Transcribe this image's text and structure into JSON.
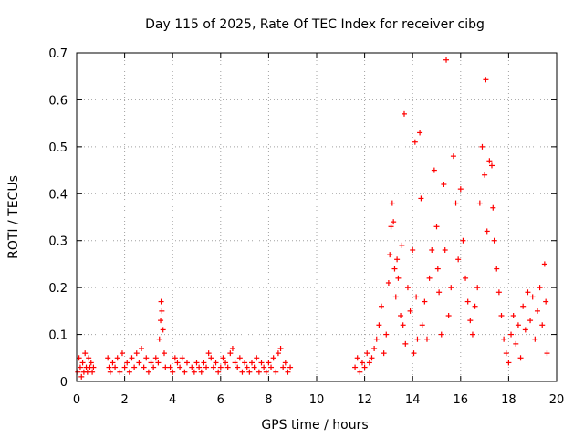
{
  "chart_data": {
    "type": "scatter",
    "title": "Day 115 of 2025, Rate Of TEC Index for receiver cibg",
    "xlabel": "GPS time / hours",
    "ylabel": "ROTI / TECUs",
    "xlim": [
      0,
      20
    ],
    "ylim": [
      0,
      0.7
    ],
    "grid": true,
    "marker": "+",
    "color": "#ff0000",
    "x_ticks": [
      "0",
      "2",
      "4",
      "6",
      "8",
      "10",
      "12",
      "14",
      "16",
      "18",
      "20"
    ],
    "y_ticks": [
      "0",
      "0.1",
      "0.2",
      "0.3",
      "0.4",
      "0.5",
      "0.6",
      "0.7"
    ],
    "series": [
      {
        "name": "ROTI",
        "points": [
          [
            0.05,
            0.02
          ],
          [
            0.1,
            0.05
          ],
          [
            0.15,
            0.03
          ],
          [
            0.2,
            0.01
          ],
          [
            0.25,
            0.04
          ],
          [
            0.3,
            0.02
          ],
          [
            0.35,
            0.06
          ],
          [
            0.4,
            0.03
          ],
          [
            0.45,
            0.02
          ],
          [
            0.5,
            0.05
          ],
          [
            0.55,
            0.03
          ],
          [
            0.6,
            0.04
          ],
          [
            0.65,
            0.02
          ],
          [
            0.7,
            0.03
          ],
          [
            1.3,
            0.05
          ],
          [
            1.35,
            0.03
          ],
          [
            1.4,
            0.02
          ],
          [
            1.5,
            0.04
          ],
          [
            1.6,
            0.03
          ],
          [
            1.7,
            0.05
          ],
          [
            1.8,
            0.02
          ],
          [
            1.9,
            0.06
          ],
          [
            2.0,
            0.03
          ],
          [
            2.1,
            0.04
          ],
          [
            2.2,
            0.02
          ],
          [
            2.3,
            0.05
          ],
          [
            2.4,
            0.03
          ],
          [
            2.5,
            0.06
          ],
          [
            2.6,
            0.04
          ],
          [
            2.7,
            0.07
          ],
          [
            2.8,
            0.03
          ],
          [
            2.9,
            0.05
          ],
          [
            3.0,
            0.02
          ],
          [
            3.1,
            0.04
          ],
          [
            3.2,
            0.03
          ],
          [
            3.3,
            0.05
          ],
          [
            3.4,
            0.04
          ],
          [
            3.45,
            0.09
          ],
          [
            3.5,
            0.13
          ],
          [
            3.52,
            0.17
          ],
          [
            3.55,
            0.15
          ],
          [
            3.6,
            0.11
          ],
          [
            3.65,
            0.06
          ],
          [
            3.7,
            0.03
          ],
          [
            3.9,
            0.03
          ],
          [
            4.0,
            0.02
          ],
          [
            4.1,
            0.05
          ],
          [
            4.2,
            0.04
          ],
          [
            4.3,
            0.03
          ],
          [
            4.4,
            0.05
          ],
          [
            4.5,
            0.02
          ],
          [
            4.6,
            0.04
          ],
          [
            4.8,
            0.03
          ],
          [
            4.9,
            0.02
          ],
          [
            5.0,
            0.04
          ],
          [
            5.1,
            0.03
          ],
          [
            5.2,
            0.02
          ],
          [
            5.3,
            0.04
          ],
          [
            5.4,
            0.03
          ],
          [
            5.5,
            0.06
          ],
          [
            5.6,
            0.05
          ],
          [
            5.7,
            0.03
          ],
          [
            5.8,
            0.04
          ],
          [
            5.9,
            0.02
          ],
          [
            6.0,
            0.03
          ],
          [
            6.1,
            0.05
          ],
          [
            6.2,
            0.04
          ],
          [
            6.3,
            0.03
          ],
          [
            6.4,
            0.06
          ],
          [
            6.5,
            0.07
          ],
          [
            6.6,
            0.04
          ],
          [
            6.7,
            0.03
          ],
          [
            6.8,
            0.05
          ],
          [
            6.9,
            0.02
          ],
          [
            7.0,
            0.04
          ],
          [
            7.1,
            0.03
          ],
          [
            7.2,
            0.02
          ],
          [
            7.3,
            0.04
          ],
          [
            7.4,
            0.03
          ],
          [
            7.5,
            0.05
          ],
          [
            7.6,
            0.02
          ],
          [
            7.7,
            0.04
          ],
          [
            7.8,
            0.03
          ],
          [
            7.9,
            0.02
          ],
          [
            8.0,
            0.04
          ],
          [
            8.1,
            0.03
          ],
          [
            8.2,
            0.05
          ],
          [
            8.3,
            0.02
          ],
          [
            8.4,
            0.06
          ],
          [
            8.5,
            0.07
          ],
          [
            8.6,
            0.03
          ],
          [
            8.7,
            0.04
          ],
          [
            8.8,
            0.02
          ],
          [
            8.9,
            0.03
          ],
          [
            11.6,
            0.03
          ],
          [
            11.7,
            0.05
          ],
          [
            11.8,
            0.02
          ],
          [
            11.9,
            0.04
          ],
          [
            12.0,
            0.03
          ],
          [
            12.1,
            0.06
          ],
          [
            12.2,
            0.04
          ],
          [
            12.3,
            0.05
          ],
          [
            12.4,
            0.07
          ],
          [
            12.5,
            0.09
          ],
          [
            12.6,
            0.12
          ],
          [
            12.7,
            0.16
          ],
          [
            12.8,
            0.06
          ],
          [
            12.9,
            0.1
          ],
          [
            13.0,
            0.21
          ],
          [
            13.05,
            0.27
          ],
          [
            13.1,
            0.33
          ],
          [
            13.15,
            0.38
          ],
          [
            13.2,
            0.34
          ],
          [
            13.25,
            0.24
          ],
          [
            13.3,
            0.18
          ],
          [
            13.35,
            0.26
          ],
          [
            13.4,
            0.22
          ],
          [
            13.5,
            0.14
          ],
          [
            13.55,
            0.29
          ],
          [
            13.6,
            0.12
          ],
          [
            13.65,
            0.57
          ],
          [
            13.7,
            0.08
          ],
          [
            13.8,
            0.2
          ],
          [
            13.9,
            0.15
          ],
          [
            14.0,
            0.28
          ],
          [
            14.05,
            0.06
          ],
          [
            14.1,
            0.51
          ],
          [
            14.15,
            0.18
          ],
          [
            14.2,
            0.09
          ],
          [
            14.3,
            0.53
          ],
          [
            14.35,
            0.39
          ],
          [
            14.4,
            0.12
          ],
          [
            14.5,
            0.17
          ],
          [
            14.6,
            0.09
          ],
          [
            14.7,
            0.22
          ],
          [
            14.8,
            0.28
          ],
          [
            14.9,
            0.45
          ],
          [
            15.0,
            0.33
          ],
          [
            15.05,
            0.24
          ],
          [
            15.1,
            0.19
          ],
          [
            15.2,
            0.1
          ],
          [
            15.3,
            0.42
          ],
          [
            15.35,
            0.28
          ],
          [
            15.4,
            0.685
          ],
          [
            15.5,
            0.14
          ],
          [
            15.6,
            0.2
          ],
          [
            15.7,
            0.48
          ],
          [
            15.8,
            0.38
          ],
          [
            15.9,
            0.26
          ],
          [
            16.0,
            0.41
          ],
          [
            16.1,
            0.3
          ],
          [
            16.2,
            0.22
          ],
          [
            16.3,
            0.17
          ],
          [
            16.4,
            0.13
          ],
          [
            16.5,
            0.1
          ],
          [
            16.6,
            0.16
          ],
          [
            16.7,
            0.2
          ],
          [
            16.8,
            0.38
          ],
          [
            16.9,
            0.5
          ],
          [
            17.0,
            0.44
          ],
          [
            17.05,
            0.643
          ],
          [
            17.1,
            0.32
          ],
          [
            17.2,
            0.47
          ],
          [
            17.3,
            0.46
          ],
          [
            17.35,
            0.37
          ],
          [
            17.4,
            0.3
          ],
          [
            17.5,
            0.24
          ],
          [
            17.6,
            0.19
          ],
          [
            17.7,
            0.14
          ],
          [
            17.8,
            0.09
          ],
          [
            17.9,
            0.06
          ],
          [
            18.0,
            0.04
          ],
          [
            18.1,
            0.1
          ],
          [
            18.2,
            0.14
          ],
          [
            18.3,
            0.08
          ],
          [
            18.4,
            0.12
          ],
          [
            18.5,
            0.05
          ],
          [
            18.6,
            0.16
          ],
          [
            18.7,
            0.11
          ],
          [
            18.8,
            0.19
          ],
          [
            18.9,
            0.13
          ],
          [
            19.0,
            0.18
          ],
          [
            19.1,
            0.09
          ],
          [
            19.2,
            0.15
          ],
          [
            19.3,
            0.2
          ],
          [
            19.4,
            0.12
          ],
          [
            19.5,
            0.25
          ],
          [
            19.55,
            0.17
          ],
          [
            19.6,
            0.06
          ]
        ]
      }
    ]
  }
}
